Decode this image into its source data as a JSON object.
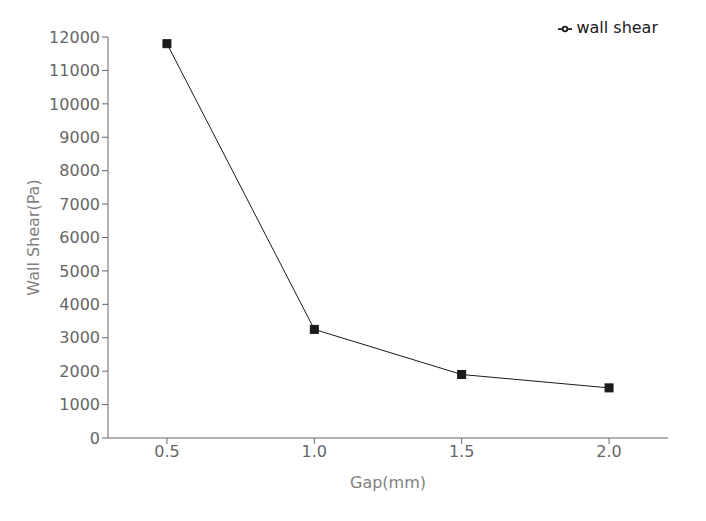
{
  "chart_data": {
    "type": "line",
    "x": [
      0.5,
      1.0,
      1.5,
      2.0
    ],
    "series": [
      {
        "name": "wall shear",
        "color": "#1a1a1a",
        "values": [
          11800,
          3250,
          1900,
          1500
        ],
        "marker": "square",
        "line_style": "solid"
      }
    ],
    "xlabel": "Gap(mm)",
    "ylabel": "Wall Shear(Pa)",
    "xlim": [
      0.3,
      2.2
    ],
    "ylim": [
      0,
      12000
    ],
    "xticks": [
      0.5,
      {
        "value": 1.0,
        "label": "1.0"
      },
      1.5,
      {
        "value": 2.0,
        "label": "2.0"
      }
    ],
    "yticks": [
      0,
      1000,
      2000,
      3000,
      4000,
      5000,
      6000,
      7000,
      8000,
      9000,
      10000,
      11000,
      12000
    ],
    "grid": false,
    "legend": "upper right"
  }
}
